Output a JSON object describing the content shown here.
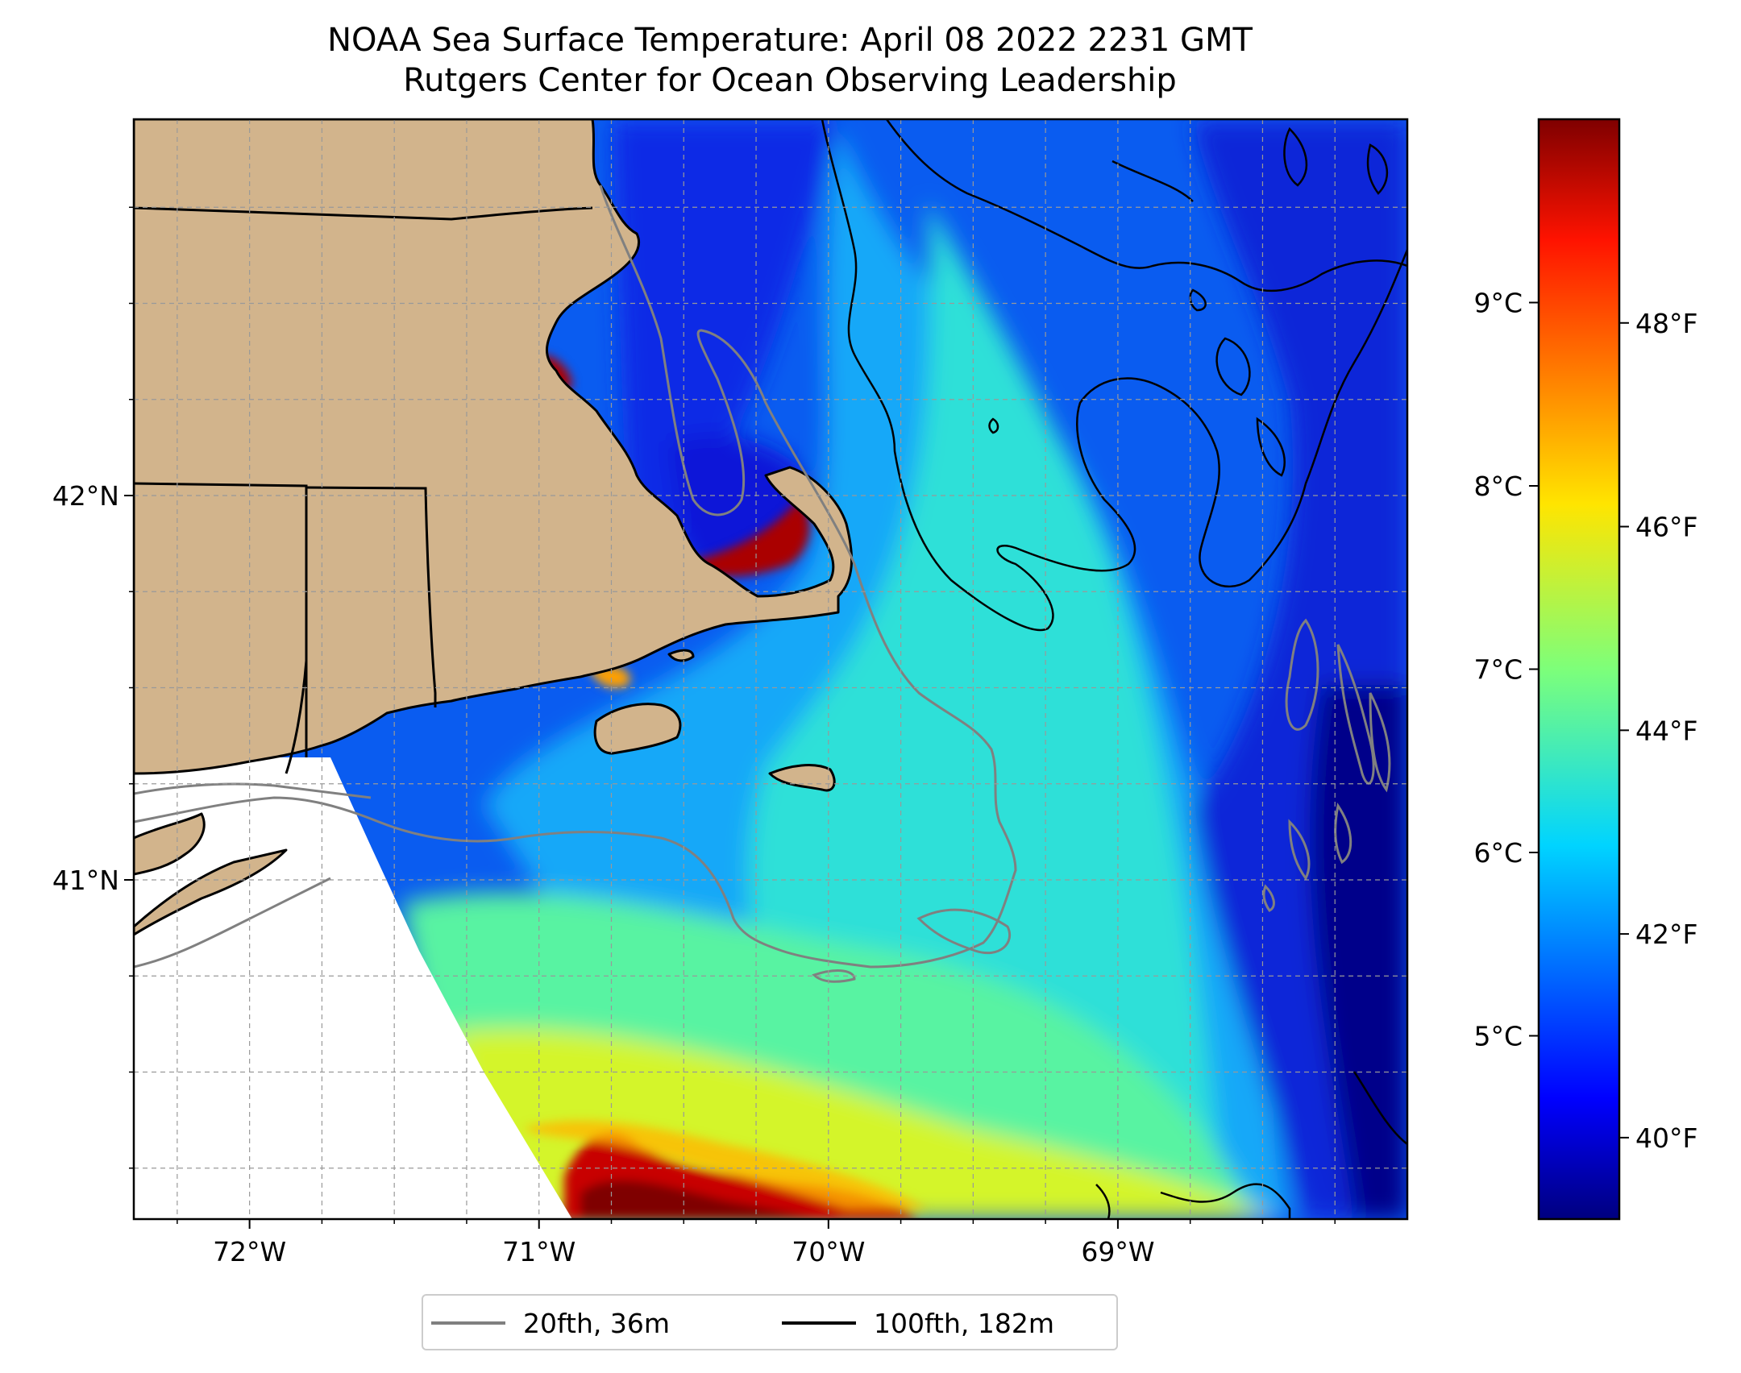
{
  "title": {
    "line1": "NOAA Sea Surface Temperature: April 08 2022 2231 GMT",
    "line2": "Rutgers Center for Ocean Observing Leadership"
  },
  "map": {
    "lon_range": [
      -72.4,
      -68.0
    ],
    "lat_range": [
      40.15,
      43.0
    ],
    "lon_ticks": [
      {
        "lon": -72,
        "label": "72°W"
      },
      {
        "lon": -71,
        "label": "71°W"
      },
      {
        "lon": -70,
        "label": "70°W"
      },
      {
        "lon": -69,
        "label": "69°W"
      }
    ],
    "lat_ticks": [
      {
        "lat": 42,
        "label": "42°N"
      },
      {
        "lat": 41,
        "label": "41°N"
      }
    ],
    "grid": true,
    "land_color": "#d2b48c",
    "no_data_color": "#ffffff"
  },
  "colorbar": {
    "colormap": "jet",
    "celsius_ticks": [
      {
        "value": 9,
        "label": "9°C"
      },
      {
        "value": 8,
        "label": "8°C"
      },
      {
        "value": 7,
        "label": "7°C"
      },
      {
        "value": 6,
        "label": "6°C"
      },
      {
        "value": 5,
        "label": "5°C"
      }
    ],
    "fahrenheit_ticks": [
      {
        "value": 48,
        "label": "48°F"
      },
      {
        "value": 46,
        "label": "46°F"
      },
      {
        "value": 44,
        "label": "44°F"
      },
      {
        "value": 42,
        "label": "42°F"
      },
      {
        "value": 40,
        "label": "40°F"
      }
    ],
    "range_f": [
      39.2,
      50.0
    ]
  },
  "legend": {
    "items": [
      {
        "label": "20fth, 36m",
        "color": "#808080"
      },
      {
        "label": "100fth, 182m",
        "color": "#000000"
      }
    ]
  }
}
